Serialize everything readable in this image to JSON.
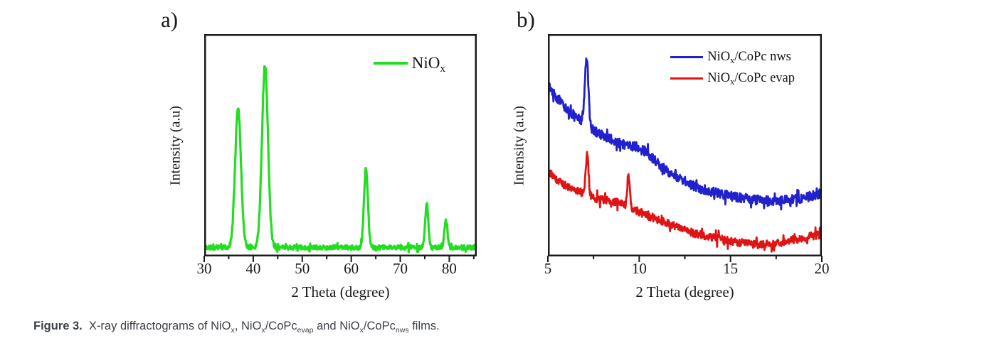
{
  "figure": {
    "caption_segments": [
      [
        "b",
        "Figure 3."
      ],
      [
        "t",
        "  X-ray diffractograms of NiO"
      ],
      [
        "s",
        "x"
      ],
      [
        "t",
        ", NiO"
      ],
      [
        "s",
        "x"
      ],
      [
        "t",
        "/CoPc"
      ],
      [
        "s",
        "evap"
      ],
      [
        "t",
        " and NiO"
      ],
      [
        "s",
        "x"
      ],
      [
        "t",
        "/CoPc"
      ],
      [
        "s",
        "nws"
      ],
      [
        "t",
        " films."
      ]
    ]
  },
  "panels": [
    {
      "tag": "a)",
      "xlabel": "2 Theta (degree)",
      "ylabel": "Intensity (a.u)"
    },
    {
      "tag": "b)",
      "xlabel": "2 Theta (degree)",
      "ylabel": "Intensity (a.u)"
    }
  ],
  "colors": {
    "frame": "#1a1a1a",
    "nio_green": "#22dd22",
    "nws_blue": "#2222cc",
    "evap_red": "#e01414"
  },
  "chart_data": [
    {
      "panel": "a",
      "type": "line",
      "title": "",
      "xlabel": "2 Theta (degree)",
      "ylabel": "Intensity (a.u)",
      "xlim": [
        30,
        85.6
      ],
      "ylim": [
        0,
        1
      ],
      "x_ticks": [
        30,
        40,
        50,
        60,
        70,
        80
      ],
      "x_minor_step": 5,
      "grid": false,
      "legend_position": "top-right",
      "y_axis_note": "arbitrary units, no tick labels",
      "series": [
        {
          "name": "NiOx",
          "label_segments": [
            [
              "t",
              "NiO"
            ],
            [
              "s",
              "x"
            ]
          ],
          "color": "#22dd22",
          "line_width": 3.2,
          "seed": 11,
          "noise": 0.01,
          "baseline": [
            [
              30,
              0.04
            ],
            [
              85.6,
              0.04
            ]
          ],
          "peaks": [
            {
              "center": 36.9,
              "height": 0.63,
              "sigma": 0.6
            },
            {
              "center": 42.4,
              "height": 0.815,
              "sigma": 0.62
            },
            {
              "center": 63.0,
              "height": 0.355,
              "sigma": 0.4
            },
            {
              "center": 75.4,
              "height": 0.195,
              "sigma": 0.33
            },
            {
              "center": 79.3,
              "height": 0.125,
              "sigma": 0.3
            }
          ]
        }
      ]
    },
    {
      "panel": "b",
      "type": "line",
      "title": "",
      "xlabel": "2 Theta (degree)",
      "ylabel": "Intensity (a.u)",
      "xlim": [
        5,
        20
      ],
      "ylim": [
        0,
        1
      ],
      "x_ticks": [
        5,
        10,
        15,
        20
      ],
      "x_minor_step": 2.5,
      "grid": false,
      "legend_position": "top-right",
      "y_axis_note": "arbitrary units, no tick labels",
      "series": [
        {
          "name": "NiOx/CoPc nws",
          "label_segments": [
            [
              "t",
              "NiO"
            ],
            [
              "s",
              "x"
            ],
            [
              "t",
              "/CoPc nws"
            ]
          ],
          "color": "#2222cc",
          "line_width": 2.8,
          "seed": 13,
          "noise": 0.021,
          "baseline": [
            [
              5,
              0.775
            ],
            [
              5.5,
              0.71
            ],
            [
              6,
              0.665
            ],
            [
              6.5,
              0.63
            ],
            [
              7,
              0.6
            ],
            [
              7.5,
              0.565
            ],
            [
              8,
              0.545
            ],
            [
              8.5,
              0.525
            ],
            [
              9,
              0.505
            ],
            [
              9.6,
              0.475
            ],
            [
              10.2,
              0.462
            ],
            [
              10.8,
              0.43
            ],
            [
              11.5,
              0.385
            ],
            [
              12,
              0.36
            ],
            [
              13,
              0.315
            ],
            [
              14,
              0.29
            ],
            [
              15,
              0.272
            ],
            [
              16,
              0.258
            ],
            [
              17,
              0.25
            ],
            [
              18,
              0.253
            ],
            [
              19,
              0.262
            ],
            [
              20,
              0.285
            ]
          ],
          "peaks": [
            {
              "center": 7.12,
              "height": 0.3,
              "sigma": 0.1
            },
            {
              "center": 10.0,
              "height": 0.025,
              "sigma": 0.5
            }
          ]
        },
        {
          "name": "NiOx/CoPc evap",
          "label_segments": [
            [
              "t",
              "NiO"
            ],
            [
              "s",
              "x"
            ],
            [
              "t",
              "/CoPc evap"
            ]
          ],
          "color": "#e01414",
          "line_width": 2.8,
          "seed": 29,
          "noise": 0.018,
          "baseline": [
            [
              5,
              0.39
            ],
            [
              5.5,
              0.345
            ],
            [
              6,
              0.315
            ],
            [
              6.5,
              0.3
            ],
            [
              7,
              0.28
            ],
            [
              7.5,
              0.265
            ],
            [
              8,
              0.255
            ],
            [
              8.5,
              0.25
            ],
            [
              9,
              0.235
            ],
            [
              9.5,
              0.215
            ],
            [
              10,
              0.2
            ],
            [
              10.5,
              0.185
            ],
            [
              11,
              0.165
            ],
            [
              12,
              0.135
            ],
            [
              13,
              0.105
            ],
            [
              14,
              0.085
            ],
            [
              15,
              0.068
            ],
            [
              16,
              0.058
            ],
            [
              16.8,
              0.052
            ],
            [
              17.5,
              0.058
            ],
            [
              18,
              0.068
            ],
            [
              19,
              0.082
            ],
            [
              20,
              0.1
            ]
          ],
          "peaks": [
            {
              "center": 7.15,
              "height": 0.185,
              "sigma": 0.075
            },
            {
              "center": 9.42,
              "height": 0.16,
              "sigma": 0.07
            }
          ]
        }
      ]
    }
  ]
}
